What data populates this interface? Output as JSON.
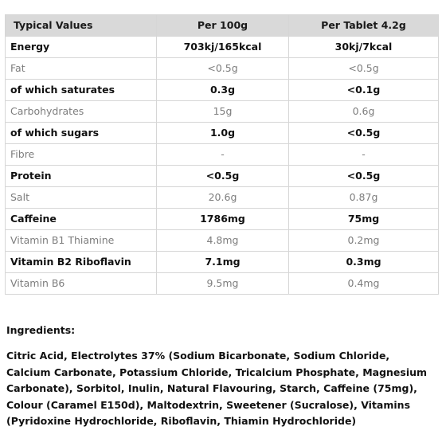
{
  "table": {
    "headers": [
      "Typical Values",
      "Per 100g",
      "Per Tablet 4.2g"
    ],
    "rows": [
      {
        "label": "Energy",
        "per100g": "703kj/165kcal",
        "perTablet": "30kj/7kcal",
        "style": "bold"
      },
      {
        "label": "Fat",
        "per100g": "<0.5g",
        "perTablet": "<0.5g",
        "style": "light"
      },
      {
        "label": "of which saturates",
        "per100g": "0.3g",
        "perTablet": "<0.1g",
        "style": "bold"
      },
      {
        "label": "Carbohydrates",
        "per100g": "15g",
        "perTablet": "0.6g",
        "style": "light"
      },
      {
        "label": "of which sugars",
        "per100g": "1.0g",
        "perTablet": "<0.5g",
        "style": "bold"
      },
      {
        "label": "Fibre",
        "per100g": "-",
        "perTablet": "-",
        "style": "light"
      },
      {
        "label": "Protein",
        "per100g": "<0.5g",
        "perTablet": "<0.5g",
        "style": "bold"
      },
      {
        "label": "Salt",
        "per100g": "20.6g",
        "perTablet": "0.87g",
        "style": "light"
      },
      {
        "label": "Caffeine",
        "per100g": "1786mg",
        "perTablet": "75mg",
        "style": "bold"
      },
      {
        "label": "Vitamin B1 Thiamine",
        "per100g": "4.8mg",
        "perTablet": "0.2mg",
        "style": "light"
      },
      {
        "label": "Vitamin B2 Riboflavin",
        "per100g": "7.1mg",
        "perTablet": "0.3mg",
        "style": "bold"
      },
      {
        "label": "Vitamin B6",
        "per100g": "9.5mg",
        "perTablet": "0.4mg",
        "style": "light"
      }
    ]
  },
  "ingredients": {
    "heading": "Ingredients:",
    "text": "Citric Acid, Electrolytes 37% (Sodium Bicarbonate, Sodium Chloride, Calcium Carbonate, Potassium Chloride, Tricalcium Phosphate, Magnesium Carbonate), Sorbitol, Inulin, Natural Flavouring, Starch, Caffeine (75mg), Colour (Caramel E150d), Maltodextrin, Sweetener (Sucralose), Vitamins (Pyridoxine Hydrochloride, Riboflavin, Thiamin Hydrochloride)"
  },
  "colors": {
    "header_bg": "#d9d9d9",
    "border": "#d6d6d6",
    "bold_text": "#111111",
    "light_text": "#7d7d7d"
  }
}
